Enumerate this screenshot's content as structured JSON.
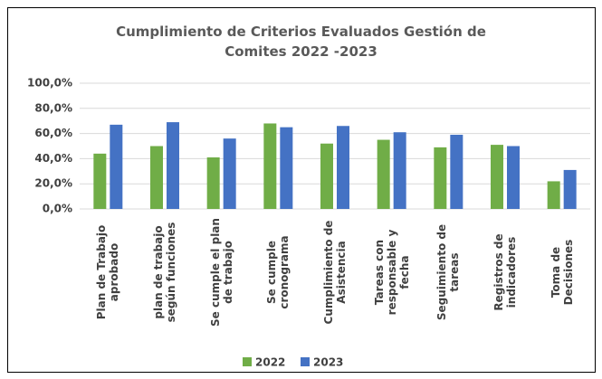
{
  "chart_data": {
    "type": "bar",
    "title": "Cumplimiento de Criterios Evaluados Gestión de Comites 2022 -2023",
    "categories": [
      "Plan de Trabajo aprobado",
      "plan de trabajo según funciones",
      "Se cumple el plan de trabajo",
      "Se cumple cronograma",
      "Cumplimiento de Asistencia",
      "Tareas con responsable y fecha",
      "Seguimiento de tareas",
      "Registros de indicadores",
      "Toma de Decisiones"
    ],
    "series": [
      {
        "name": "2022",
        "color": "#70ad47",
        "values": [
          44,
          50,
          41,
          68,
          52,
          55,
          49,
          51,
          22
        ]
      },
      {
        "name": "2023",
        "color": "#4472c4",
        "values": [
          67,
          69,
          56,
          65,
          66,
          61,
          59,
          50,
          31
        ]
      }
    ],
    "ylim": [
      0,
      100
    ],
    "yticks": [
      {
        "value": 0,
        "label": "0,0%"
      },
      {
        "value": 20,
        "label": "20,0%"
      },
      {
        "value": 40,
        "label": "40,0%"
      },
      {
        "value": 60,
        "label": "60,0%"
      },
      {
        "value": 80,
        "label": "80,0%"
      },
      {
        "value": 100,
        "label": "100,0%"
      }
    ],
    "grid": true,
    "legend": "bottom"
  }
}
